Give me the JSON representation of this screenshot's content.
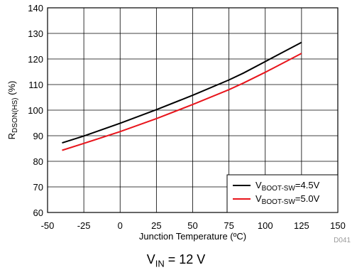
{
  "chart_data": {
    "type": "line",
    "xlabel": "Junction Temperature (ºC)",
    "ylabel": {
      "main": "R",
      "sub": "DSON(HS)",
      "tail": " (%)"
    },
    "xlim": [
      -50,
      150
    ],
    "ylim": [
      60,
      140
    ],
    "x_ticks": [
      -50,
      -25,
      0,
      25,
      50,
      75,
      100,
      125,
      150
    ],
    "y_ticks": [
      60,
      70,
      80,
      90,
      100,
      110,
      120,
      130,
      140
    ],
    "grid": true,
    "legend_position": "bottom-right",
    "series": [
      {
        "name": {
          "main": "V",
          "sub": "BOOT-SW",
          "tail": "=4.5V"
        },
        "color": "#000000",
        "points": [
          [
            -40,
            87.2
          ],
          [
            -25,
            89.9
          ],
          [
            0,
            94.9
          ],
          [
            25,
            100.2
          ],
          [
            50,
            105.8
          ],
          [
            75,
            111.8
          ],
          [
            85,
            114.5
          ],
          [
            100,
            119.0
          ],
          [
            125,
            126.5
          ]
        ]
      },
      {
        "name": {
          "main": "V",
          "sub": "BOOT-SW",
          "tail": "=5.0V"
        },
        "color": "#e8141b",
        "points": [
          [
            -40,
            84.3
          ],
          [
            -25,
            87.0
          ],
          [
            0,
            91.6
          ],
          [
            25,
            96.7
          ],
          [
            50,
            102.2
          ],
          [
            75,
            108.0
          ],
          [
            85,
            110.6
          ],
          [
            100,
            114.8
          ],
          [
            125,
            122.2
          ]
        ]
      }
    ],
    "figure_id": "D041"
  },
  "caption": {
    "main": "V",
    "sub": "IN",
    "tail": " = 12 V"
  }
}
